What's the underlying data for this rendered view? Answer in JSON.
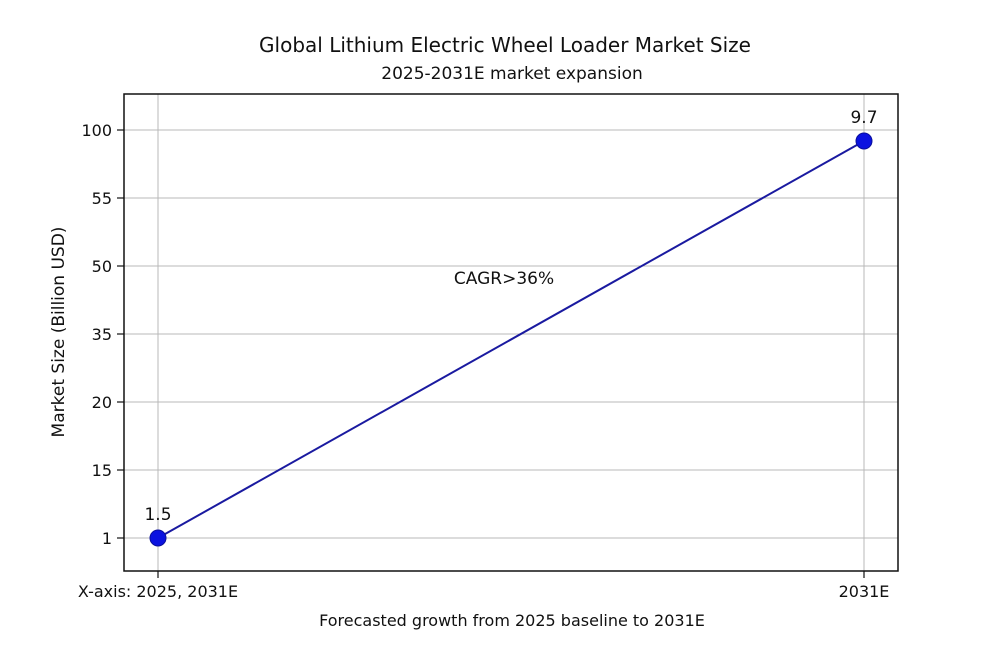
{
  "chart_data": {
    "type": "line",
    "title": "Global Lithium Electric Wheel Loader Market Size",
    "subtitle": "2025-2031E market expansion",
    "xlabel": "Forecasted growth from 2025 baseline to 2031E",
    "ylabel": "Market Size (Billion USD)",
    "x_tick_labels": [
      "X-axis: 2025, 2031E",
      "2031E"
    ],
    "y_tick_labels": [
      "1",
      "15",
      "20",
      "35",
      "50",
      "55",
      "100"
    ],
    "series": [
      {
        "x": [
          "2025",
          "2031E"
        ],
        "values": [
          1.5,
          9.7
        ],
        "point_labels": [
          "1.5",
          "9.7"
        ]
      }
    ],
    "annotations": [
      {
        "text": "CAGR>36%"
      }
    ],
    "grid": true,
    "legend": "none",
    "colors": {
      "line": "#1a1aa0",
      "marker": "#0b12e0",
      "grid": "#b8b8b8",
      "axis": "#111111"
    }
  }
}
